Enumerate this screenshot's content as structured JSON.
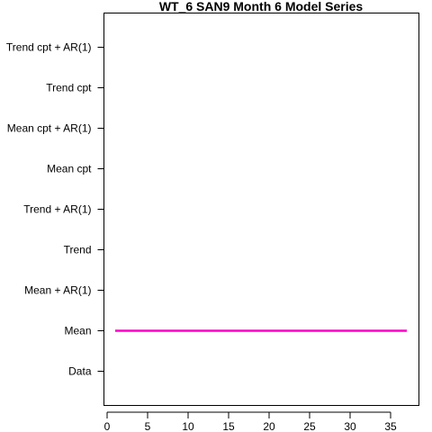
{
  "chart_data": {
    "type": "line",
    "title": "WT_6 SAN9 Month 6 Model Series",
    "xlabel": "",
    "ylabel": "",
    "categories": [
      "Data",
      "Mean",
      "Mean + AR(1)",
      "Trend",
      "Trend + AR(1)",
      "Mean cpt",
      "Mean cpt + AR(1)",
      "Trend cpt",
      "Trend cpt + AR(1)"
    ],
    "xlim": [
      -0.5,
      38.5
    ],
    "xticks": [
      0,
      5,
      10,
      15,
      20,
      25,
      30,
      35
    ],
    "series": [
      {
        "category": "Mean",
        "color": "#ff00cc",
        "x": [
          1,
          37
        ],
        "y": [
          "Mean",
          "Mean"
        ]
      }
    ],
    "grid": false,
    "legend": "none"
  }
}
